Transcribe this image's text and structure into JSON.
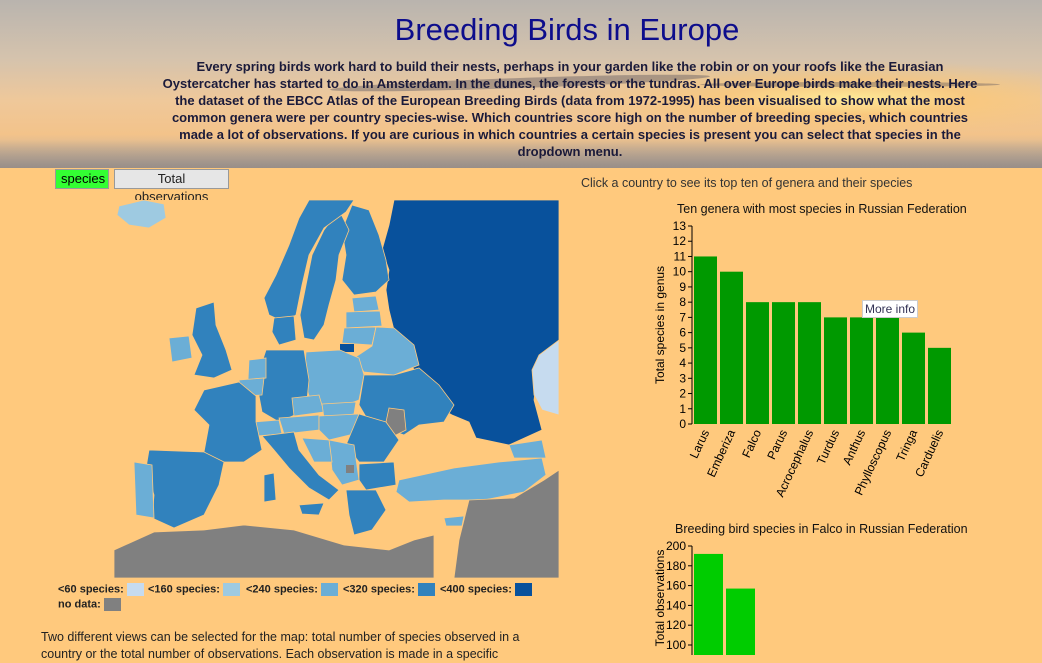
{
  "header": {
    "title": "Breeding Birds in Europe",
    "intro": "Every spring birds work hard to build their nests, perhaps in your garden like the robin or on your roofs like the Eurasian Oystercatcher has started to do in Amsterdam. In the dunes, the forests or the tundras. All over Europe birds make their nests. Here the dataset of the EBCC Atlas of the European Breeding Birds (data from 1972-1995) has been visualised to show what the most common genera were per country species-wise. Which countries score high on the number of breeding species, which countries made a lot of observations. If you are curious in which countries a certain species is present you can select that species in the dropdown menu."
  },
  "map_controls": {
    "species_label": "species",
    "total_label": "Total observations",
    "active": "species"
  },
  "legend": {
    "items": [
      {
        "label": "<60 species:",
        "color": "#c6dbef"
      },
      {
        "label": "<160 species:",
        "color": "#9ecae1"
      },
      {
        "label": "<240 species:",
        "color": "#6baed6"
      },
      {
        "label": "<320 species:",
        "color": "#6baed6"
      },
      {
        "label": "<400 species:",
        "color": "#3182bd"
      },
      {
        "label": "no data:",
        "color": "#808080"
      }
    ],
    "top_color": "#08519c"
  },
  "bottom_text": "Two different views can be selected for the map: total number of species observed in a country or the total number of observations. Each observation is made in a specific",
  "right": {
    "hint": "Click a country to see its top ten of genera and their species",
    "tooltip": "More info"
  },
  "colors": {
    "bar": "#009900",
    "bar_light": "#00cc00",
    "land_no_data": "#808080"
  },
  "chart_data": [
    {
      "type": "bar",
      "title": "Ten genera with most species in Russian Federation",
      "xlabel": "",
      "ylabel": "Total species in genus",
      "categories": [
        "Larus",
        "Emberiza",
        "Falco",
        "Parus",
        "Acrocephalus",
        "Turdus",
        "Anthus",
        "Phylloscopus",
        "Tringa",
        "Carduelis"
      ],
      "values": [
        11,
        10,
        8,
        8,
        8,
        7,
        7,
        7,
        6,
        5
      ],
      "ylim": [
        0,
        13
      ],
      "yticks": [
        0,
        1,
        2,
        3,
        4,
        5,
        6,
        7,
        8,
        9,
        10,
        11,
        12,
        13
      ]
    },
    {
      "type": "bar",
      "title": "Breeding bird species in Falco in Russian Federation",
      "xlabel": "",
      "ylabel": "Total observations",
      "categories": [
        "",
        ""
      ],
      "values": [
        192,
        157
      ],
      "ylim": [
        0,
        200
      ],
      "yticks": [
        100,
        120,
        140,
        160,
        180,
        200
      ]
    }
  ]
}
